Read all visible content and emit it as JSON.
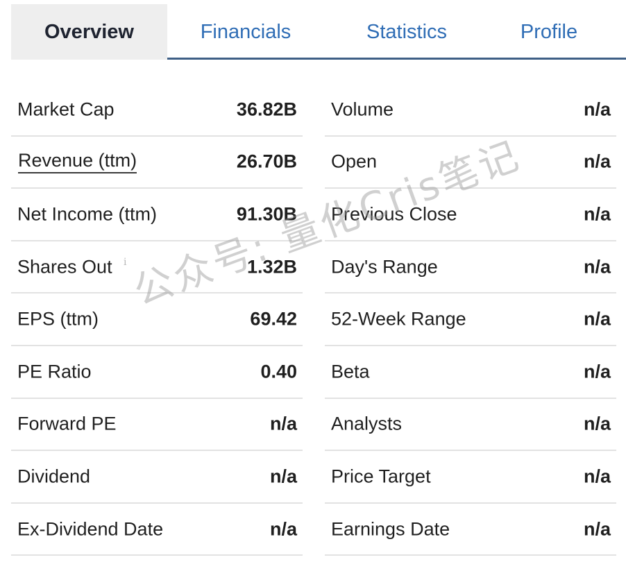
{
  "tabs": [
    {
      "label": "Overview",
      "active": true
    },
    {
      "label": "Financials",
      "active": false
    },
    {
      "label": "Statistics",
      "active": false
    },
    {
      "label": "Profile",
      "active": false
    }
  ],
  "left_stats": [
    {
      "label": "Market Cap",
      "value": "36.82B"
    },
    {
      "label": "Revenue (ttm)",
      "value": "26.70B",
      "link": true
    },
    {
      "label": "Net Income (ttm)",
      "value": "91.30B"
    },
    {
      "label": "Shares Out",
      "value": "1.32B",
      "info_icon": "i"
    },
    {
      "label": "EPS (ttm)",
      "value": "69.42"
    },
    {
      "label": "PE Ratio",
      "value": "0.40"
    },
    {
      "label": "Forward PE",
      "value": "n/a"
    },
    {
      "label": "Dividend",
      "value": "n/a"
    },
    {
      "label": "Ex-Dividend Date",
      "value": "n/a"
    }
  ],
  "right_stats": [
    {
      "label": "Volume",
      "value": "n/a"
    },
    {
      "label": "Open",
      "value": "n/a"
    },
    {
      "label": "Previous Close",
      "value": "n/a"
    },
    {
      "label": "Day's Range",
      "value": "n/a"
    },
    {
      "label": "52-Week Range",
      "value": "n/a"
    },
    {
      "label": "Beta",
      "value": "n/a"
    },
    {
      "label": "Analysts",
      "value": "n/a"
    },
    {
      "label": "Price Target",
      "value": "n/a"
    },
    {
      "label": "Earnings Date",
      "value": "n/a"
    }
  ],
  "watermark": "公众号: 量化Cris笔记",
  "colors": {
    "accent": "#2f6db5",
    "tab_border": "#3e5f86",
    "active_tab_bg": "#eeeeee",
    "divider": "#e2e2e2"
  }
}
